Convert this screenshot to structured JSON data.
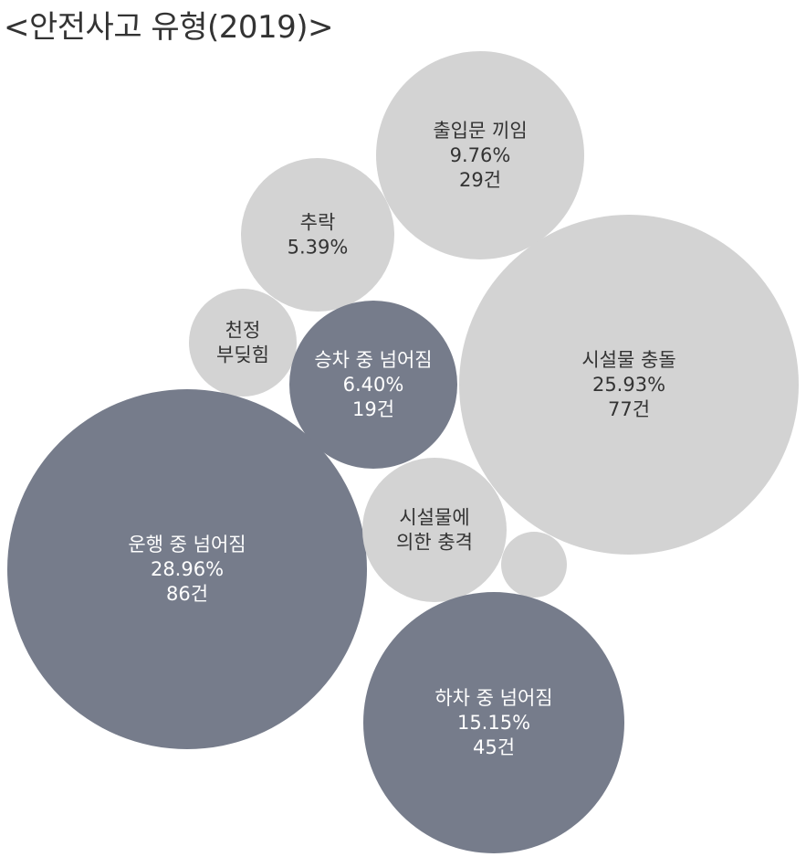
{
  "chart_data": {
    "type": "bubble",
    "title": "<안전사고 유형(2019)>",
    "colors": {
      "light": "#d3d3d3",
      "dark": "#767c8b",
      "light_text": "#333333",
      "dark_text": "#ffffff"
    },
    "bubbles": [
      {
        "id": "boarding-door",
        "label_lines": [
          "출입문 끼임"
        ],
        "percent": "9.76%",
        "count": "29건",
        "value": 9.76,
        "tone": "light"
      },
      {
        "id": "fall",
        "label_lines": [
          "추락"
        ],
        "percent": "5.39%",
        "count": "",
        "value": 5.39,
        "tone": "light"
      },
      {
        "id": "ceiling-bump",
        "label_lines": [
          "천정",
          "부딪힘"
        ],
        "percent": "",
        "count": "",
        "value": null,
        "tone": "light"
      },
      {
        "id": "boarding-fall",
        "label_lines": [
          "승차 중 넘어짐"
        ],
        "percent": "6.40%",
        "count": "19건",
        "value": 6.4,
        "tone": "dark"
      },
      {
        "id": "facility-collision",
        "label_lines": [
          "시설물 충돌"
        ],
        "percent": "25.93%",
        "count": "77건",
        "value": 25.93,
        "tone": "light"
      },
      {
        "id": "riding-fall",
        "label_lines": [
          "운행 중 넘어짐"
        ],
        "percent": "28.96%",
        "count": "86건",
        "value": 28.96,
        "tone": "dark"
      },
      {
        "id": "facility-impact",
        "label_lines": [
          "시설물에",
          "의한 충격"
        ],
        "percent": "",
        "count": "",
        "value": null,
        "tone": "light"
      },
      {
        "id": "unlabeled",
        "label_lines": [],
        "percent": "",
        "count": "",
        "value": null,
        "tone": "light"
      },
      {
        "id": "alighting-fall",
        "label_lines": [
          "하차 중 넘어짐"
        ],
        "percent": "15.15%",
        "count": "45건",
        "value": 15.15,
        "tone": "dark"
      }
    ]
  }
}
